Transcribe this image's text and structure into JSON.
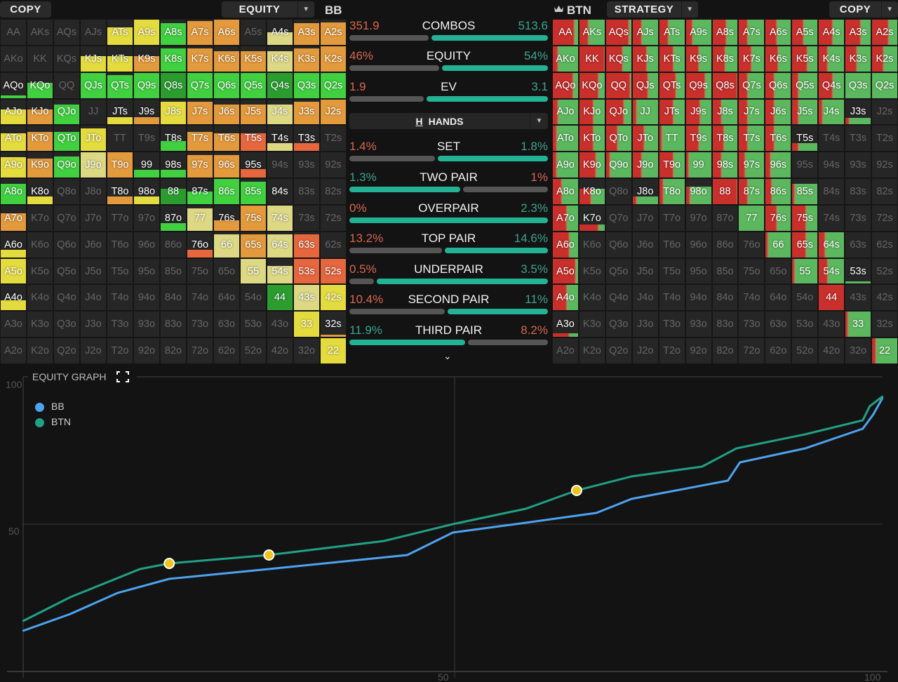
{
  "left_header": {
    "copy_label": "COPY",
    "mode_label": "EQUITY",
    "player": "BB"
  },
  "right_header": {
    "player": "BTN",
    "mode_label": "STRATEGY",
    "copy_label": "COPY"
  },
  "hands": [
    [
      "AA",
      "AKs",
      "AQs",
      "AJs",
      "ATs",
      "A9s",
      "A8s",
      "A7s",
      "A6s",
      "A5s",
      "A4s",
      "A3s",
      "A2s"
    ],
    [
      "AKo",
      "KK",
      "KQs",
      "KJs",
      "KTs",
      "K9s",
      "K8s",
      "K7s",
      "K6s",
      "K5s",
      "K4s",
      "K3s",
      "K2s"
    ],
    [
      "AQo",
      "KQo",
      "QQ",
      "QJs",
      "QTs",
      "Q9s",
      "Q8s",
      "Q7s",
      "Q6s",
      "Q5s",
      "Q4s",
      "Q3s",
      "Q2s"
    ],
    [
      "AJo",
      "KJo",
      "QJo",
      "JJ",
      "JTs",
      "J9s",
      "J8s",
      "J7s",
      "J6s",
      "J5s",
      "J4s",
      "J3s",
      "J2s"
    ],
    [
      "ATo",
      "KTo",
      "QTo",
      "JTo",
      "TT",
      "T9s",
      "T8s",
      "T7s",
      "T6s",
      "T5s",
      "T4s",
      "T3s",
      "T2s"
    ],
    [
      "A9o",
      "K9o",
      "Q9o",
      "J9o",
      "T9o",
      "99",
      "98s",
      "97s",
      "96s",
      "95s",
      "94s",
      "93s",
      "92s"
    ],
    [
      "A8o",
      "K8o",
      "Q8o",
      "J8o",
      "T8o",
      "98o",
      "88",
      "87s",
      "86s",
      "85s",
      "84s",
      "83s",
      "82s"
    ],
    [
      "A7o",
      "K7o",
      "Q7o",
      "J7o",
      "T7o",
      "97o",
      "87o",
      "77",
      "76s",
      "75s",
      "74s",
      "73s",
      "72s"
    ],
    [
      "A6o",
      "K6o",
      "Q6o",
      "J6o",
      "T6o",
      "96o",
      "86o",
      "76o",
      "66",
      "65s",
      "64s",
      "63s",
      "62s"
    ],
    [
      "A5o",
      "K5o",
      "Q5o",
      "J5o",
      "T5o",
      "95o",
      "85o",
      "75o",
      "65o",
      "55",
      "54s",
      "53s",
      "52s"
    ],
    [
      "A4o",
      "K4o",
      "Q4o",
      "J4o",
      "T4o",
      "94o",
      "84o",
      "74o",
      "64o",
      "54o",
      "44",
      "43s",
      "42s"
    ],
    [
      "A3o",
      "K3o",
      "Q3o",
      "J3o",
      "T3o",
      "93o",
      "83o",
      "73o",
      "63o",
      "53o",
      "43o",
      "33",
      "32s"
    ],
    [
      "A2o",
      "K2o",
      "Q2o",
      "J2o",
      "T2o",
      "92o",
      "82o",
      "72o",
      "62o",
      "52o",
      "42o",
      "32o",
      "22"
    ]
  ],
  "equity_colors": {
    "Y": "#e4dc3e",
    "O": "#e39a3c",
    "R": "#e6663e",
    "G": "#40d040",
    "D": "#2b9d2f",
    "L": "#dcd884"
  },
  "bb_equity_grid": [
    "- - - - Y:.7 Y:1 G:.85 O:.95 O:1 - L:.5 O:.85 O:.9",
    "- - - Y:.6 Y:.6 O:.6 G:.9 O:.9 O:.8 O:.8 L:.8 O:.9 O:1",
    "G:.1 G:.6 - G:1 G:.9 G:1 D:1 G:1 G:1 G:1 D:1 G:1 G:1",
    "Y:.6 O:.6 G:.8 - Y:.3 O:.3 Y:.9 O:.9 O:.8 O:.8 L:.8 O:.9 O:1",
    "Y:.7 O:.75 G:.75 Y:.9 - - G:.4 O:.75 O:.7 R:.7 L:.3 R:.3 -",
    "Y:.8 O:.75 G:.85 L:1 O:1 G:.3 G:.3 O:.9 O:.9 R:.35 - - -",
    "G:.8 Y:.3 - - O:.3 Y:.3 D:.6 G:.5 G:1 G:.9 W:0 - -",
    "O:.7 - - - - - G:.3 L:.9 O:.4 O:1 L:1 - -",
    "Y:.3 - - - - - - R:.3 L:.9 O:.9 L:.9 R:.9 -",
    "Y:1 - - - - - - - - L:1 L:.7 R:1 R:1",
    "Y:.4 - - - - - - - - - D:1 L:1 Y:1",
    "- - - - - - - - - - - Y:1 O:.1",
    "- - - - - - - - - - - - Y:1"
  ],
  "strategy_colors": {
    "bet": "#c9302c",
    "check": "#5cb85f",
    "mix": "#a88f5e"
  },
  "btn_strategy_grid": [
    ".8 .3 .85 .3 .3 .2 .5 .3 .4 .4 .5 .55 .6",
    ".15 .95 .6 .5 .5 .45 .45 .45 .45 .55 .3 .4 .4",
    ".75 .7 .9 .55 .6 .7 .95 .3 .3 .2 .5 0 0",
    ".15 .5 .65 .1 .5 .5 .3 .3 .3 .2 .1 .1@.25 -",
    ".1 .5 .4 .4 .05 .45 .4 .3 .3 .2@.3 - - -",
    ".1 .6 .1 .3 .5 .05 .3 .2 .15 - - - -",
    ".3 .4@.6 - .1@.3 .1 .1@.7 .95 .3 .2 .05@.8 - - -",
    ".5 .7@.25 - - - - - 0 .4 .5 - - -",
    ".6 - - - - - - - .05 .5 .2 - -",
    ".85 - - - - - - - - .05 .3 0@.1 -",
    ".5 - - - - - - - - - 1 - -",
    ".6@.15 - - - - - - - - - - .05 -",
    "- - - - - - - - - - - - .1"
  ],
  "stats": [
    {
      "name": "COMBOS",
      "left": "351.9",
      "right": "513.6"
    },
    {
      "name": "EQUITY",
      "left": "46%",
      "right": "54%"
    },
    {
      "name": "EV",
      "left": "1.9",
      "right": "3.1"
    },
    {
      "name": "SET",
      "left": "1.4%",
      "right": "1.8%"
    },
    {
      "name": "TWO PAIR",
      "left": "1.3%",
      "right": "1%"
    },
    {
      "name": "OVERPAIR",
      "left": "0%",
      "right": "2.3%"
    },
    {
      "name": "TOP PAIR",
      "left": "13.2%",
      "right": "14.6%"
    },
    {
      "name": "UNDERPAIR",
      "left": "0.5%",
      "right": "3.5%"
    },
    {
      "name": "SECOND PAIR",
      "left": "10.4%",
      "right": "11%"
    },
    {
      "name": "THIRD PAIR",
      "left": "11.9%",
      "right": "8.2%"
    }
  ],
  "hands_dropdown": {
    "icon_letter": "H",
    "label": "HANDS"
  },
  "stat_colors": {
    "higher": "#3aa58b",
    "lower": "#d8674d",
    "bar_win": "#23b294",
    "bar_lose": "#555555"
  },
  "chart_data": {
    "type": "line",
    "title": "EQUITY GRAPH",
    "xlim": [
      0,
      100
    ],
    "ylim": [
      0,
      100
    ],
    "x_ticks": [
      "50",
      "100"
    ],
    "y_ticks": [
      "100",
      "50"
    ],
    "grid": true,
    "legend": "top-left",
    "series": [
      {
        "name": "BB",
        "color": "#4da3f0",
        "x": [
          0,
          5.5,
          11,
          17,
          28.6,
          44.7,
          50,
          58.5,
          66.7,
          70.8,
          82,
          83.4,
          91,
          97.7,
          98.9,
          100
        ],
        "y": [
          12,
          18,
          25.5,
          30.5,
          34,
          39,
          47,
          50.5,
          54,
          59,
          65.5,
          72,
          77,
          84,
          89,
          95
        ]
      },
      {
        "name": "BTN",
        "color": "#22a084",
        "x": [
          0,
          5.5,
          13.6,
          17,
          28.6,
          42,
          50,
          58.5,
          64.4,
          70.8,
          79,
          83,
          91,
          97.7,
          98.5,
          100
        ],
        "y": [
          15.5,
          24,
          34,
          36,
          39,
          44,
          50,
          55.5,
          62,
          67,
          70.5,
          77,
          82,
          87,
          92,
          95.5
        ]
      }
    ],
    "markers": {
      "series": "BTN",
      "color": "#f0c419",
      "x": [
        17,
        28.6,
        64.4
      ],
      "y": [
        36,
        39,
        62
      ]
    }
  }
}
